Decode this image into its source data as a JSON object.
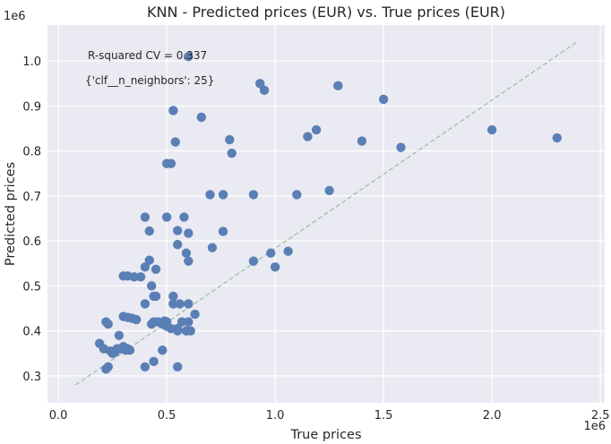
{
  "chart_data": {
    "type": "scatter",
    "title": "KNN - Predicted prices (EUR) vs. True prices (EUR)",
    "xlabel": "True prices",
    "ylabel": "Predicted prices",
    "x_offset_label": "1e6",
    "y_offset_label": "1e6",
    "xlim": [
      -0.05,
      2.52
    ],
    "ylim": [
      0.24,
      1.08
    ],
    "xticks": [
      0.0,
      0.5,
      1.0,
      1.5,
      2.0,
      2.5
    ],
    "xtick_labels": [
      "0.0",
      "0.5",
      "1.0",
      "1.5",
      "2.0",
      "2.5"
    ],
    "yticks": [
      0.3,
      0.4,
      0.5,
      0.6,
      0.7,
      0.8,
      0.9,
      1.0
    ],
    "ytick_labels": [
      "0.3",
      "0.4",
      "0.5",
      "0.6",
      "0.7",
      "0.8",
      "0.9",
      "1.0"
    ],
    "grid": true,
    "annotations": [
      "R-squared CV = 0.337",
      "{'clf__n_neighbors': 25}"
    ],
    "reference_line": {
      "x": [
        0.08,
        2.4
      ],
      "y": [
        0.28,
        1.045
      ],
      "style": "dashed",
      "color": "#8fc1a0"
    },
    "point_color": "#5a7fb5",
    "points": {
      "x": [
        0.6,
        0.93,
        0.95,
        1.29,
        1.5,
        0.53,
        0.66,
        0.79,
        0.8,
        0.54,
        1.15,
        1.19,
        1.4,
        1.58,
        2.0,
        2.3,
        0.5,
        0.52,
        0.7,
        0.76,
        0.9,
        1.1,
        1.25,
        0.4,
        0.5,
        0.58,
        0.42,
        0.55,
        0.6,
        0.76,
        0.55,
        0.59,
        0.71,
        0.6,
        0.9,
        0.98,
        1.06,
        1.0,
        0.42,
        0.4,
        0.45,
        0.3,
        0.32,
        0.35,
        0.38,
        0.43,
        0.53,
        0.44,
        0.45,
        0.4,
        0.53,
        0.56,
        0.6,
        0.63,
        0.3,
        0.32,
        0.34,
        0.36,
        0.43,
        0.44,
        0.46,
        0.48,
        0.5,
        0.52,
        0.55,
        0.57,
        0.6,
        0.59,
        0.55,
        0.61,
        0.22,
        0.23,
        0.28,
        0.19,
        0.21,
        0.25,
        0.28,
        0.3,
        0.32,
        0.33,
        0.29,
        0.27,
        0.31,
        0.24,
        0.26,
        0.23,
        0.22,
        0.4,
        0.48,
        0.44,
        0.55,
        0.5,
        0.49
      ],
      "y": [
        1.01,
        0.95,
        0.935,
        0.945,
        0.915,
        0.89,
        0.875,
        0.825,
        0.795,
        0.82,
        0.832,
        0.847,
        0.822,
        0.808,
        0.847,
        0.829,
        0.772,
        0.772,
        0.703,
        0.703,
        0.703,
        0.703,
        0.712,
        0.653,
        0.653,
        0.653,
        0.622,
        0.623,
        0.617,
        0.621,
        0.592,
        0.573,
        0.585,
        0.555,
        0.555,
        0.573,
        0.577,
        0.542,
        0.557,
        0.542,
        0.537,
        0.522,
        0.522,
        0.52,
        0.52,
        0.5,
        0.46,
        0.477,
        0.477,
        0.46,
        0.477,
        0.46,
        0.46,
        0.437,
        0.432,
        0.43,
        0.428,
        0.425,
        0.415,
        0.42,
        0.42,
        0.415,
        0.42,
        0.405,
        0.4,
        0.42,
        0.42,
        0.4,
        0.405,
        0.4,
        0.42,
        0.415,
        0.39,
        0.372,
        0.36,
        0.35,
        0.36,
        0.365,
        0.36,
        0.357,
        0.36,
        0.36,
        0.357,
        0.355,
        0.352,
        0.32,
        0.315,
        0.32,
        0.357,
        0.332,
        0.32,
        0.41,
        0.422
      ]
    }
  }
}
